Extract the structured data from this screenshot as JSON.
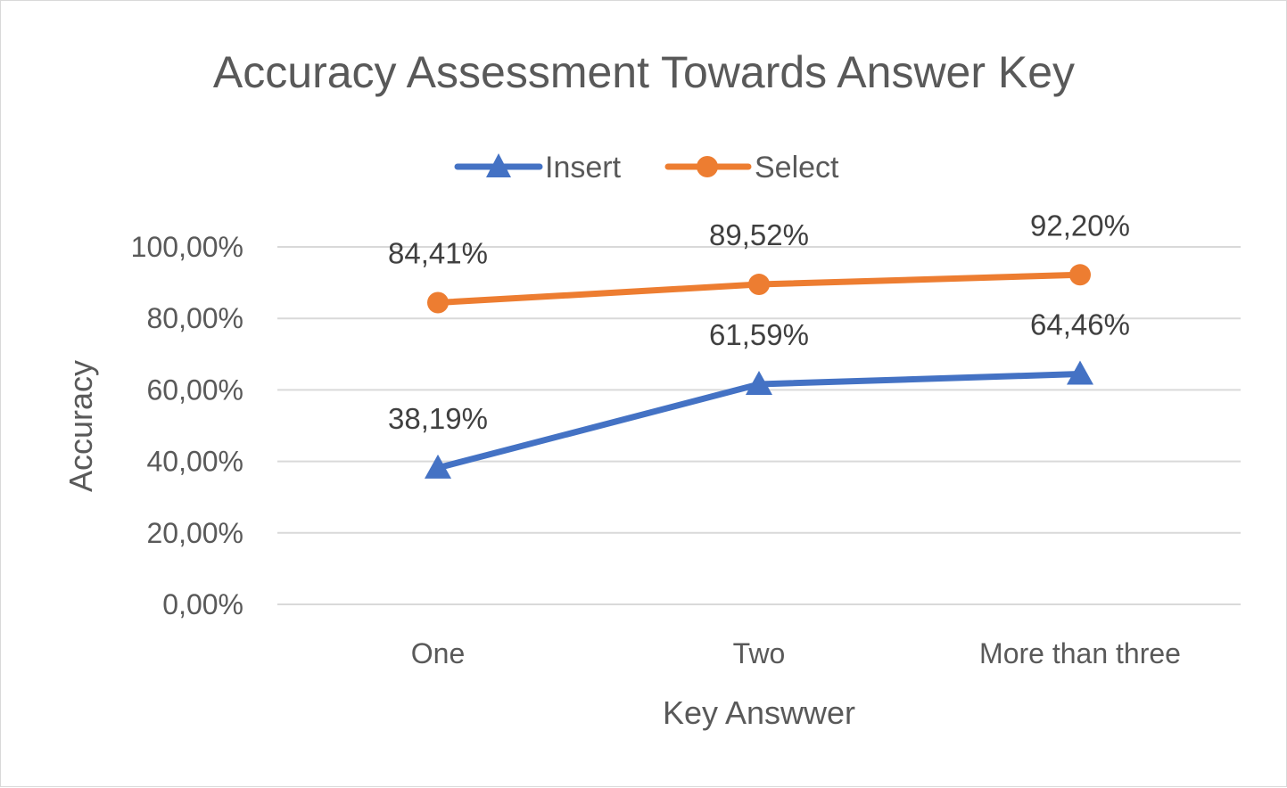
{
  "chart_data": {
    "type": "line",
    "title": "Accuracy Assessment Towards Answer Key",
    "xlabel": "Key Answwer",
    "ylabel": "Accuracy",
    "categories": [
      "One",
      "Two",
      "More than three"
    ],
    "ylim": [
      0,
      100
    ],
    "yticks": [
      0,
      20,
      40,
      60,
      80,
      100
    ],
    "ytick_labels": [
      "0,00%",
      "20,00%",
      "40,00%",
      "60,00%",
      "80,00%",
      "100,00%"
    ],
    "grid": true,
    "legend_position": "top",
    "series": [
      {
        "name": "Insert",
        "values": [
          38.19,
          61.59,
          64.46
        ],
        "labels": [
          "38,19%",
          "61,59%",
          "64,46%"
        ],
        "color": "#4472c4",
        "marker": "triangle"
      },
      {
        "name": "Select",
        "values": [
          84.41,
          89.52,
          92.2
        ],
        "labels": [
          "84,41%",
          "89,52%",
          "92,20%"
        ],
        "color": "#ed7d31",
        "marker": "circle"
      }
    ]
  }
}
